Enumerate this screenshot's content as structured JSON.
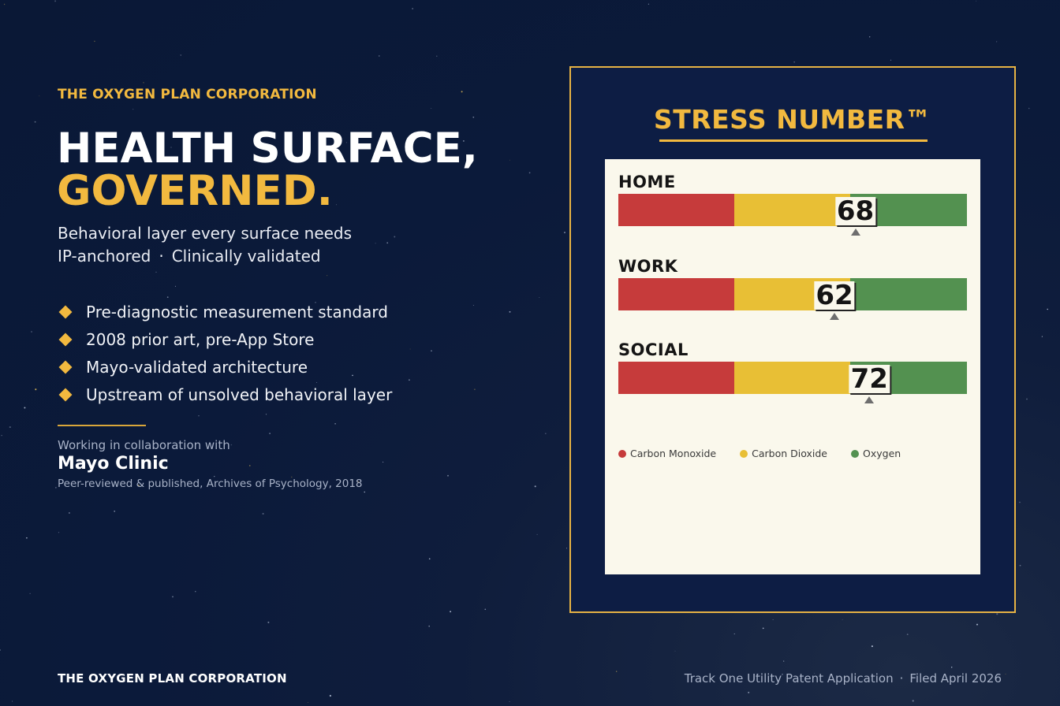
{
  "brand": {
    "eyebrow": "THE OXYGEN PLAN CORPORATION",
    "accent": "#f2b93f",
    "background": "#0b1a3a"
  },
  "hero": {
    "line1": "HEALTH SURFACE,",
    "line2": "GOVERNED."
  },
  "subtitle": {
    "line1": "Behavioral layer every surface needs",
    "line2a": "IP-anchored",
    "separator": "·",
    "line2b": "Clinically validated"
  },
  "bullets": [
    "Pre-diagnostic measurement standard",
    "2008 prior art, pre-App Store",
    "Mayo-validated architecture",
    "Upstream of unsolved behavioral layer"
  ],
  "collaboration": {
    "lead": "Working in collaboration with",
    "name": "Mayo Clinic",
    "note": "Peer-reviewed & published, Archives of Psychology, 2018"
  },
  "panel": {
    "title": "STRESS NUMBER™",
    "gauges": [
      {
        "label": "HOME",
        "value": 68
      },
      {
        "label": "WORK",
        "value": 62
      },
      {
        "label": "SOCIAL",
        "value": 72
      }
    ],
    "scale": {
      "min": 0,
      "max": 100
    },
    "bands": [
      {
        "name": "Carbon Monoxide",
        "color": "#c63b3b",
        "range": [
          0,
          33.3
        ]
      },
      {
        "name": "Carbon Dioxide",
        "color": "#e8bf35",
        "range": [
          33.3,
          66.7
        ]
      },
      {
        "name": "Oxygen",
        "color": "#539150",
        "range": [
          66.7,
          100
        ]
      }
    ]
  },
  "footer": {
    "left": "THE OXYGEN PLAN CORPORATION",
    "right_a": "Track One Utility Patent Application",
    "separator": "·",
    "right_b": "Filed April 2026"
  }
}
